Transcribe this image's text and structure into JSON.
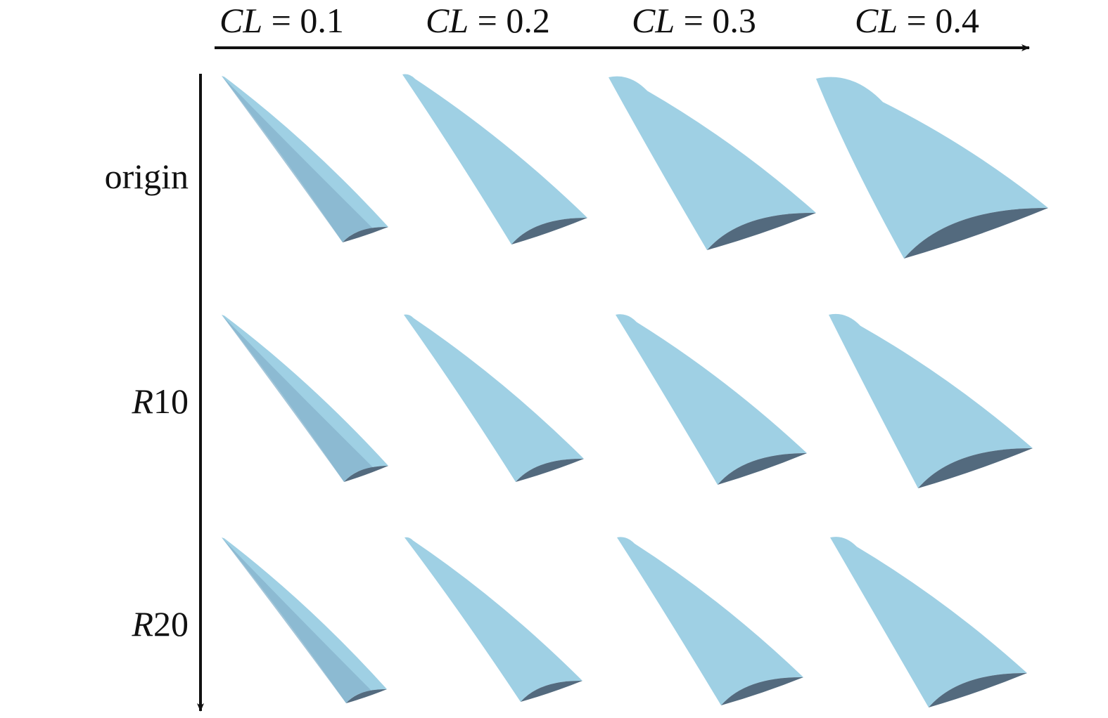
{
  "columns": [
    {
      "var": "CL",
      "eq": " = ",
      "value": "0.1"
    },
    {
      "var": "CL",
      "eq": " = ",
      "value": "0.2"
    },
    {
      "var": "CL",
      "eq": " = ",
      "value": "0.3"
    },
    {
      "var": "CL",
      "eq": " = ",
      "value": "0.4"
    }
  ],
  "rows": [
    {
      "prefix": "",
      "rest": "origin"
    },
    {
      "prefix": "R",
      "rest": "10"
    },
    {
      "prefix": "R",
      "rest": "20"
    }
  ],
  "colors": {
    "surface": "#9fd0e4",
    "surface_shade": "#86b3cc",
    "section": "#536a7e",
    "axis": "#111111"
  }
}
